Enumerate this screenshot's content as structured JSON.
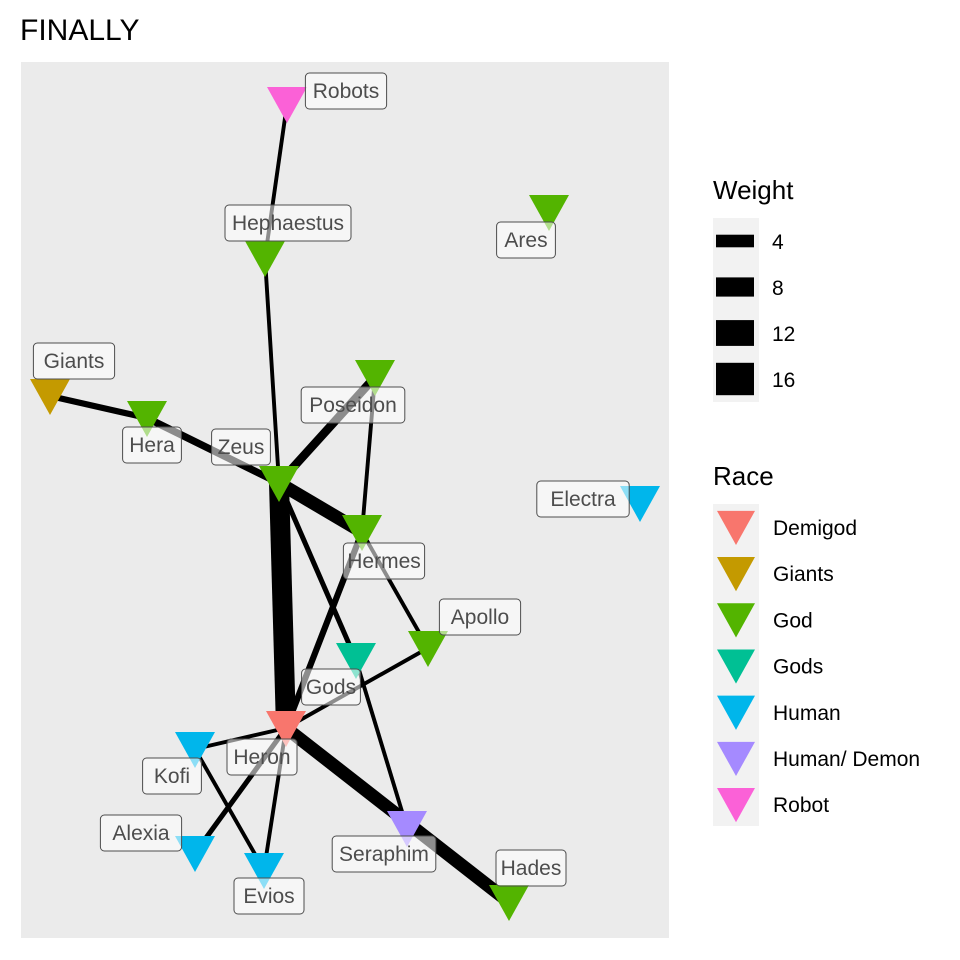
{
  "title": "FINALLY",
  "legend": {
    "weight_title": "Weight",
    "weight_items": [
      "4",
      "8",
      "12",
      "16"
    ],
    "race_title": "Race",
    "race_items": [
      {
        "label": "Demigod",
        "color": "#F8766D"
      },
      {
        "label": "Giants",
        "color": "#C49A00"
      },
      {
        "label": "God",
        "color": "#53B400"
      },
      {
        "label": "Gods",
        "color": "#00C094"
      },
      {
        "label": "Human",
        "color": "#00B6EB"
      },
      {
        "label": "Human/ Demon",
        "color": "#A58AFF"
      },
      {
        "label": "Robot",
        "color": "#FB61D7"
      }
    ]
  },
  "colors": {
    "panel": "#EBEBEB",
    "edge": "#000000",
    "label_text": "#4D4D4D",
    "label_border": "#4D4D4D"
  },
  "nodes": [
    {
      "name": "Robots",
      "race": "Robot"
    },
    {
      "name": "Hephaestus",
      "race": "God"
    },
    {
      "name": "Ares",
      "race": "God"
    },
    {
      "name": "Giants",
      "race": "Giants"
    },
    {
      "name": "Poseidon",
      "race": "God"
    },
    {
      "name": "Hera",
      "race": "God"
    },
    {
      "name": "Zeus",
      "race": "God"
    },
    {
      "name": "Electra",
      "race": "Human"
    },
    {
      "name": "Hermes",
      "race": "God"
    },
    {
      "name": "Apollo",
      "race": "God"
    },
    {
      "name": "Gods",
      "race": "Gods"
    },
    {
      "name": "Heron",
      "race": "Demigod"
    },
    {
      "name": "Kofi",
      "race": "Human"
    },
    {
      "name": "Alexia",
      "race": "Human"
    },
    {
      "name": "Evios",
      "race": "Human"
    },
    {
      "name": "Seraphim",
      "race": "Human/ Demon"
    },
    {
      "name": "Hades",
      "race": "God"
    }
  ],
  "edges": [
    {
      "source": "Robots",
      "target": "Hephaestus",
      "weight": 2
    },
    {
      "source": "Hephaestus",
      "target": "Zeus",
      "weight": 2
    },
    {
      "source": "Giants",
      "target": "Hera",
      "weight": 4
    },
    {
      "source": "Hera",
      "target": "Zeus",
      "weight": 5
    },
    {
      "source": "Zeus",
      "target": "Poseidon",
      "weight": 6
    },
    {
      "source": "Poseidon",
      "target": "Hermes",
      "weight": 2
    },
    {
      "source": "Zeus",
      "target": "Hermes",
      "weight": 10
    },
    {
      "source": "Zeus",
      "target": "Heron",
      "weight": 16
    },
    {
      "source": "Zeus",
      "target": "Gods",
      "weight": 3
    },
    {
      "source": "Hermes",
      "target": "Apollo",
      "weight": 2
    },
    {
      "source": "Hermes",
      "target": "Heron",
      "weight": 4
    },
    {
      "source": "Apollo",
      "target": "Heron",
      "weight": 2
    },
    {
      "source": "Gods",
      "target": "Seraphim",
      "weight": 2
    },
    {
      "source": "Heron",
      "target": "Kofi",
      "weight": 2
    },
    {
      "source": "Heron",
      "target": "Alexia",
      "weight": 3
    },
    {
      "source": "Heron",
      "target": "Evios",
      "weight": 2
    },
    {
      "source": "Kofi",
      "target": "Evios",
      "weight": 2
    },
    {
      "source": "Heron",
      "target": "Hades",
      "weight": 10
    }
  ]
}
